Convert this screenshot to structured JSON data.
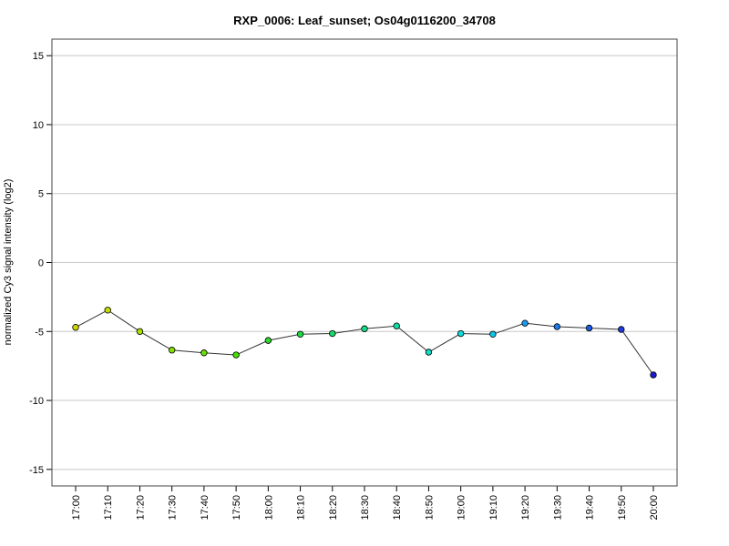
{
  "chart_data": {
    "type": "line",
    "title": "RXP_0006: Leaf_sunset; Os04g0116200_34708",
    "ylabel": "normalized Cy3 signal intensity (log2)",
    "xlabel": "",
    "ylim": [
      -16.2,
      16.2
    ],
    "yticks": [
      -15,
      -10,
      -5,
      0,
      5,
      10,
      15
    ],
    "grid": "horizontal",
    "x": [
      "17:00",
      "17:10",
      "17:20",
      "17:30",
      "17:40",
      "17:50",
      "18:00",
      "18:10",
      "18:20",
      "18:30",
      "18:40",
      "18:50",
      "19:00",
      "19:10",
      "19:20",
      "19:30",
      "19:40",
      "19:50",
      "20:00"
    ],
    "series": [
      {
        "values": [
          -4.7,
          -3.45,
          -5.0,
          -6.35,
          -6.55,
          -6.7,
          -5.65,
          -5.2,
          -5.15,
          -4.8,
          -4.6,
          -6.5,
          -5.15,
          -5.2,
          -4.4,
          -4.65,
          -4.75,
          -4.85,
          -8.15
        ],
        "line_color": "#333333",
        "point_colors": [
          "#d4d400",
          "#c4de00",
          "#a6e000",
          "#86e000",
          "#66e000",
          "#46e000",
          "#2edc2e",
          "#1edc46",
          "#18dc66",
          "#12dc86",
          "#10dca6",
          "#10dcc6",
          "#10dcdc",
          "#10c6ea",
          "#1a9af0",
          "#1a7af0",
          "#1a5ae6",
          "#1a3ce0",
          "#1a1ad2"
        ]
      }
    ]
  }
}
